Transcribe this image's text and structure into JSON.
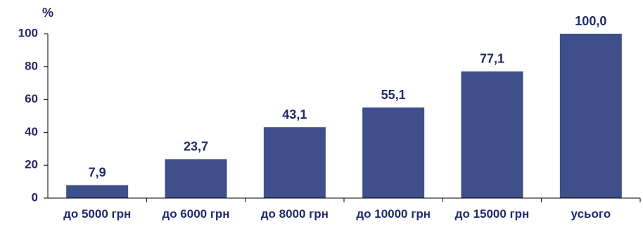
{
  "chart_data": {
    "type": "bar",
    "unit_label": "%",
    "categories": [
      "до 5000 грн",
      "до 6000 грн",
      "до 8000 грн",
      "до 10000 грн",
      "до 15000 грн",
      "усього"
    ],
    "values": [
      7.9,
      23.7,
      43.1,
      55.1,
      77.1,
      100.0
    ],
    "value_labels": [
      "7,9",
      "23,7",
      "43,1",
      "55,1",
      "77,1",
      "100,0"
    ],
    "y_ticks": [
      0,
      20,
      40,
      60,
      80,
      100
    ],
    "ylim": [
      0,
      100
    ],
    "grid": false,
    "colors": {
      "bar": "#3F4F8C",
      "text": "#1F2A6B",
      "axis": "#000000"
    }
  }
}
